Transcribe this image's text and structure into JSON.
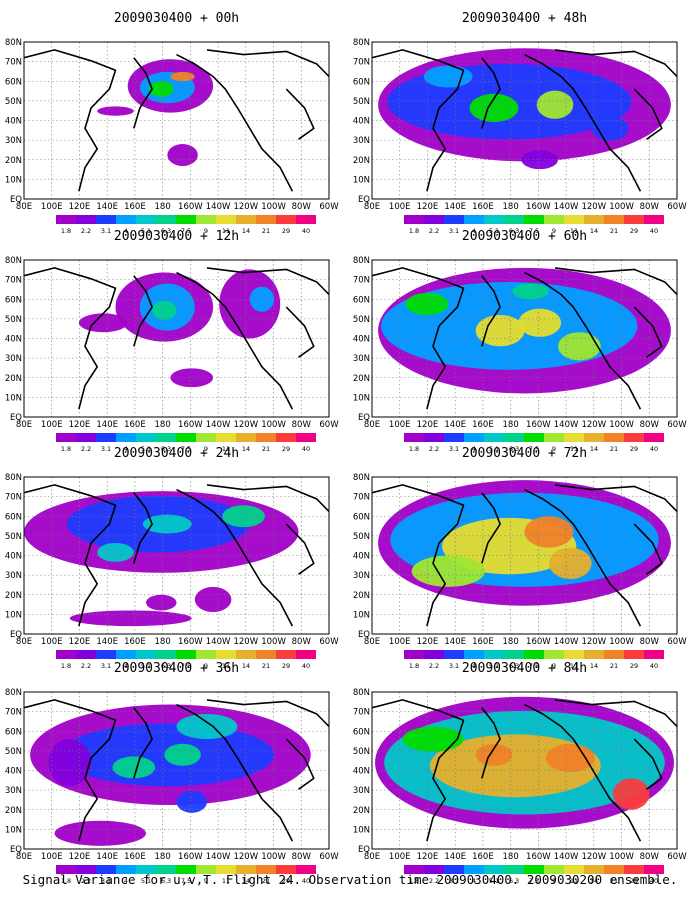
{
  "caption": "Signal Variance for u,v,T. Flight 24. Observation time 2009030400. 2009030200 ensemble.",
  "latitude_labels": [
    "80N",
    "70N",
    "60N",
    "50N",
    "40N",
    "30N",
    "20N",
    "10N",
    "EQ"
  ],
  "longitude_labels": [
    "80E",
    "100E",
    "120E",
    "140E",
    "160E",
    "180",
    "160W",
    "140W",
    "120W",
    "100W",
    "80W",
    "60W"
  ],
  "colorbar": {
    "labels": [
      "1.8",
      "2.2",
      "3.1",
      "4",
      "5.1",
      "6.3",
      "7.5",
      "9",
      "11",
      "14",
      "21",
      "29",
      "40"
    ],
    "colors": [
      "#a000c8",
      "#8200dc",
      "#1e3cff",
      "#00a0ff",
      "#00c8c8",
      "#00d28c",
      "#00dc00",
      "#a0e632",
      "#e6dc32",
      "#e6af2d",
      "#f08228",
      "#fa3c3c",
      "#f00082"
    ]
  },
  "panels": [
    {
      "title": "2009030400 + 00h",
      "column": "left"
    },
    {
      "title": "2009030400 + 12h",
      "column": "left"
    },
    {
      "title": "2009030400 + 24h",
      "column": "left"
    },
    {
      "title": "2009030400 + 36h",
      "column": "left"
    },
    {
      "title": "2009030400 + 48h",
      "column": "right"
    },
    {
      "title": "2009030400 + 60h",
      "column": "right"
    },
    {
      "title": "2009030400 + 72h",
      "column": "right"
    },
    {
      "title": "2009030400 + 84h",
      "column": "right"
    }
  ]
}
